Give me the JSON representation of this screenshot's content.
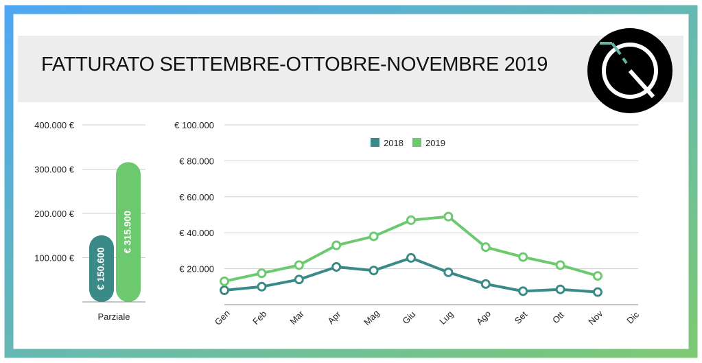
{
  "title": "FATTURATO SETTEMBRE-OTTOBRE-NOVEMBRE 2019",
  "logo": {
    "icon": "q-logo-icon",
    "background": "#000000",
    "stroke": "#ffffff",
    "accent": "#63b5a6"
  },
  "colors": {
    "y2018": "#3a8a87",
    "y2019": "#6cc96f",
    "frame_start": "#4ea7f2",
    "frame_end": "#7dc974"
  },
  "chart_data": [
    {
      "type": "bar",
      "title": "",
      "categories": [
        "Parziale"
      ],
      "series": [
        {
          "name": "2018",
          "values": [
            150600
          ],
          "label": "€ 150.600"
        },
        {
          "name": "2019",
          "values": [
            315900
          ],
          "label": "€ 315.900"
        }
      ],
      "yticks": [
        100000,
        200000,
        300000,
        400000
      ],
      "ytick_labels": [
        "100.000 €",
        "200.000 €",
        "300.000 €",
        "400.000 €"
      ],
      "ylim": [
        0,
        400000
      ],
      "xlabel": "",
      "ylabel": "",
      "grid": true
    },
    {
      "type": "line",
      "title": "",
      "categories": [
        "Gen",
        "Feb",
        "Mar",
        "Apr",
        "Mag",
        "Giu",
        "Lug",
        "Ago",
        "Set",
        "Ott",
        "Nov",
        "Dic"
      ],
      "series": [
        {
          "name": "2018",
          "values": [
            8000,
            10000,
            14000,
            21000,
            19000,
            26000,
            18000,
            11500,
            7500,
            8500,
            7000,
            null
          ]
        },
        {
          "name": "2019",
          "values": [
            13000,
            17500,
            22000,
            33000,
            38000,
            47000,
            49000,
            32000,
            26500,
            22000,
            16000,
            null
          ]
        }
      ],
      "yticks": [
        20000,
        40000,
        60000,
        80000,
        100000
      ],
      "ytick_labels": [
        "€ 20.000",
        "€ 40.000",
        "€ 60.000",
        "€ 80.000",
        "€ 100.000"
      ],
      "ylim": [
        0,
        100000
      ],
      "legend": [
        "2018",
        "2019"
      ],
      "legend_position": "top-center",
      "xlabel": "",
      "ylabel": "",
      "grid": true
    }
  ]
}
